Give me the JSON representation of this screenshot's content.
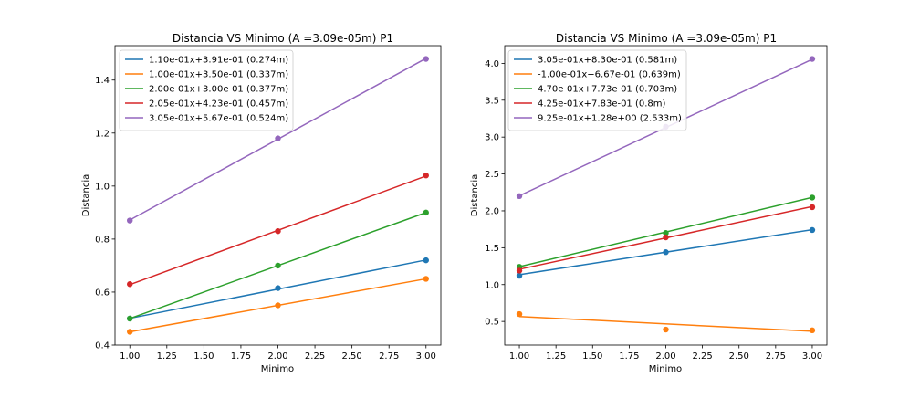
{
  "chart_data": [
    {
      "type": "line",
      "title": "Distancia VS Minimo (A =3.09e-05m) P1",
      "xlabel": "Minimo",
      "ylabel": "Distancia",
      "xlim": [
        0.9,
        3.1
      ],
      "ylim": [
        0.4,
        1.53
      ],
      "xticks": [
        "1.00",
        "1.25",
        "1.50",
        "1.75",
        "2.00",
        "2.25",
        "2.50",
        "2.75",
        "3.00"
      ],
      "yticks": [
        "0.4",
        "0.6",
        "0.8",
        "1.0",
        "1.2",
        "1.4"
      ],
      "legend_position": "top-left",
      "series": [
        {
          "name": "1.10e-01x+3.91e-01 (0.274m)",
          "color": "#1f77b4",
          "slope": 0.11,
          "intercept": 0.391,
          "points": [
            [
              1,
              0.5
            ],
            [
              2,
              0.615
            ],
            [
              3,
              0.72
            ]
          ]
        },
        {
          "name": "1.00e-01x+3.50e-01 (0.337m)",
          "color": "#ff7f0e",
          "slope": 0.1,
          "intercept": 0.35,
          "points": [
            [
              1,
              0.45
            ],
            [
              2,
              0.55
            ],
            [
              3,
              0.65
            ]
          ]
        },
        {
          "name": "2.00e-01x+3.00e-01 (0.377m)",
          "color": "#2ca02c",
          "slope": 0.2,
          "intercept": 0.3,
          "points": [
            [
              1,
              0.5
            ],
            [
              2,
              0.7
            ],
            [
              3,
              0.9
            ]
          ]
        },
        {
          "name": "2.05e-01x+4.23e-01 (0.457m)",
          "color": "#d62728",
          "slope": 0.205,
          "intercept": 0.423,
          "points": [
            [
              1,
              0.63
            ],
            [
              2,
              0.83
            ],
            [
              3,
              1.04
            ]
          ]
        },
        {
          "name": "3.05e-01x+5.67e-01 (0.524m)",
          "color": "#9467bd",
          "slope": 0.305,
          "intercept": 0.567,
          "points": [
            [
              1,
              0.87
            ],
            [
              2,
              1.18
            ],
            [
              3,
              1.48
            ]
          ]
        }
      ]
    },
    {
      "type": "line",
      "title": "Distancia VS Minimo (A =3.09e-05m) P1",
      "xlabel": "Minimo",
      "ylabel": "Distancia",
      "xlim": [
        0.9,
        3.1
      ],
      "ylim": [
        0.18,
        4.24
      ],
      "xticks": [
        "1.00",
        "1.25",
        "1.50",
        "1.75",
        "2.00",
        "2.25",
        "2.50",
        "2.75",
        "3.00"
      ],
      "yticks": [
        "0.5",
        "1.0",
        "1.5",
        "2.0",
        "2.5",
        "3.0",
        "3.5",
        "4.0"
      ],
      "legend_position": "top-left",
      "series": [
        {
          "name": "3.05e-01x+8.30e-01 (0.581m)",
          "color": "#1f77b4",
          "slope": 0.305,
          "intercept": 0.83,
          "points": [
            [
              1,
              1.12
            ],
            [
              2,
              1.44
            ],
            [
              3,
              1.74
            ]
          ]
        },
        {
          "name": "-1.00e-01x+6.67e-01 (0.639m)",
          "color": "#ff7f0e",
          "slope": -0.1,
          "intercept": 0.667,
          "points": [
            [
              1,
              0.6
            ],
            [
              2,
              0.39
            ],
            [
              3,
              0.38
            ]
          ]
        },
        {
          "name": "4.70e-01x+7.73e-01 (0.703m)",
          "color": "#2ca02c",
          "slope": 0.47,
          "intercept": 0.773,
          "points": [
            [
              1,
              1.24
            ],
            [
              2,
              1.7
            ],
            [
              3,
              2.18
            ]
          ]
        },
        {
          "name": "4.25e-01x+7.83e-01 (0.8m)",
          "color": "#d62728",
          "slope": 0.425,
          "intercept": 0.783,
          "points": [
            [
              1,
              1.19
            ],
            [
              2,
              1.64
            ],
            [
              3,
              2.05
            ]
          ]
        },
        {
          "name": "9.25e-01x+1.28e+00 (2.533m)",
          "color": "#9467bd",
          "slope": 0.925,
          "intercept": 1.28,
          "points": [
            [
              1,
              2.2
            ],
            [
              2,
              3.14
            ],
            [
              3,
              4.06
            ]
          ]
        }
      ]
    }
  ]
}
